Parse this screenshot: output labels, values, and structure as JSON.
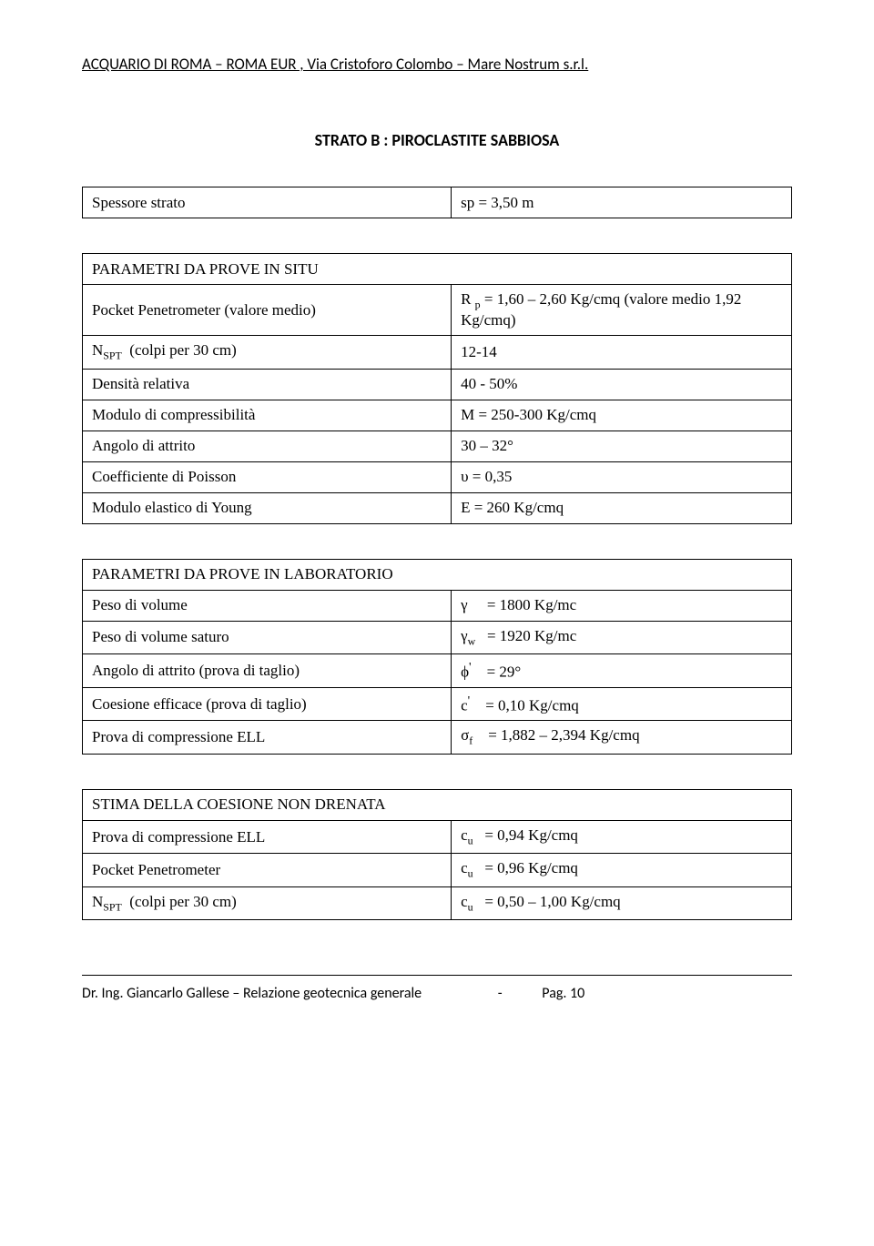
{
  "header": "ACQUARIO DI ROMA – ROMA EUR , Via Cristoforo Colombo – Mare Nostrum s.r.l.",
  "title": "STRATO B : PIROCLASTITE SABBIOSA",
  "thickness": {
    "label": "Spessore strato",
    "value": "sp   = 3,50 m"
  },
  "situ": {
    "heading": "PARAMETRI DA PROVE IN SITU",
    "rows": [
      {
        "label": "Pocket Penetrometer (valore medio)",
        "value_html": "R <sub>p</sub> = 1,60 – 2,60 Kg/cmq (valore medio 1,92 Kg/cmq)"
      },
      {
        "label_html": "N<sub>SPT</sub> &nbsp;(colpi per 30 cm)",
        "value": "12-14"
      },
      {
        "label": "Densità relativa",
        "value": "40 - 50%"
      },
      {
        "label": "Modulo di compressibilità",
        "value": "M     = 250-300 Kg/cmq"
      },
      {
        "label": "Angolo di attrito",
        "value": "30 – 32°"
      },
      {
        "label": "Coefficiente di Poisson",
        "value": "υ      = 0,35"
      },
      {
        "label": "Modulo elastico di Young",
        "value": "E      = 260 Kg/cmq"
      }
    ]
  },
  "lab": {
    "heading": "PARAMETRI DA PROVE IN LABORATORIO",
    "rows": [
      {
        "label": "Peso di volume",
        "value_html": "γ&nbsp;&nbsp;&nbsp;&nbsp;&nbsp;= 1800 Kg/mc"
      },
      {
        "label": "Peso di volume saturo",
        "value_html": "γ<sub>w</sub>&nbsp;&nbsp;&nbsp;= 1920 Kg/mc"
      },
      {
        "label": "Angolo di attrito (prova di taglio)",
        "value_html": "ϕ<sup>'</sup>&nbsp;&nbsp;&nbsp;&nbsp;= 29°"
      },
      {
        "label": "Coesione efficace (prova di taglio)",
        "value_html": "c<sup>'</sup>&nbsp;&nbsp;&nbsp;&nbsp;= 0,10 Kg/cmq"
      },
      {
        "label": "Prova di compressione ELL",
        "value_html": "σ<sub>f</sub>&nbsp;&nbsp;&nbsp;&nbsp;= 1,882 – 2,394 Kg/cmq"
      }
    ]
  },
  "undrained": {
    "heading": "STIMA DELLA COESIONE NON DRENATA",
    "rows": [
      {
        "label": "Prova di compressione ELL",
        "value_html": "c<sub>u</sub>&nbsp;&nbsp;&nbsp;= 0,94 Kg/cmq"
      },
      {
        "label": "Pocket Penetrometer",
        "value_html": "c<sub>u</sub>&nbsp;&nbsp;&nbsp;= 0,96 Kg/cmq"
      },
      {
        "label_html": "N<sub>SPT</sub> &nbsp;(colpi per 30 cm)",
        "value_html": "c<sub>u</sub>&nbsp;&nbsp;&nbsp;= 0,50 – 1,00 Kg/cmq"
      }
    ]
  },
  "footer": {
    "left": "Dr. Ing. Giancarlo Gallese – Relazione geotecnica generale",
    "sep": "-",
    "right": "Pag. 10"
  }
}
